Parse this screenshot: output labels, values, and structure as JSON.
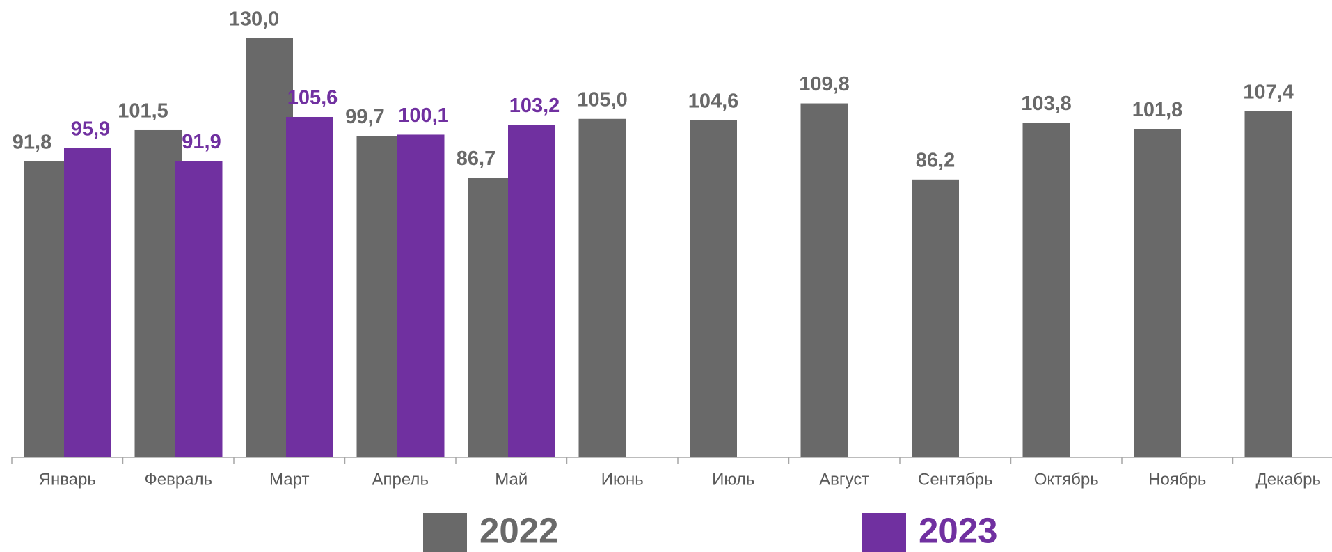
{
  "chart_data": {
    "type": "bar",
    "categories": [
      "Январь",
      "Февраль",
      "Март",
      "Апрель",
      "Май",
      "Июнь",
      "Июль",
      "Август",
      "Сентябрь",
      "Октябрь",
      "Ноябрь",
      "Декабрь"
    ],
    "series": [
      {
        "name": "2022",
        "color": "#696969",
        "values": [
          91.8,
          101.5,
          130.0,
          99.7,
          86.7,
          105.0,
          104.6,
          109.8,
          86.2,
          103.8,
          101.8,
          107.4
        ],
        "value_labels": [
          "91,8",
          "101,5",
          "130,0",
          "99,7",
          "86,7",
          "105,0",
          "104,6",
          "109,8",
          "86,2",
          "103,8",
          "101,8",
          "107,4"
        ]
      },
      {
        "name": "2023",
        "color": "#7030a0",
        "values": [
          95.9,
          91.9,
          105.6,
          100.1,
          103.2,
          null,
          null,
          null,
          null,
          null,
          null,
          null
        ],
        "value_labels": [
          "95,9",
          "91,9",
          "105,6",
          "100,1",
          "103,2",
          null,
          null,
          null,
          null,
          null,
          null,
          null
        ]
      }
    ],
    "ylim": [
      0,
      130
    ],
    "legend": "bottom"
  }
}
